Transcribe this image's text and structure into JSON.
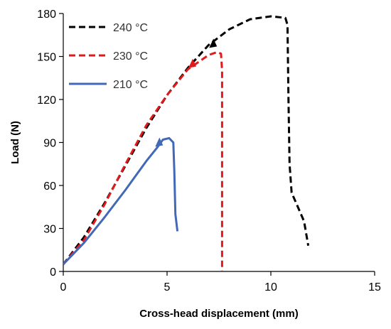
{
  "chart_data": {
    "type": "line",
    "title": "",
    "xlabel": "Cross-head displacement (mm)",
    "ylabel": "Load (N)",
    "xlim": [
      0,
      15
    ],
    "ylim": [
      0,
      180
    ],
    "xticks": [
      "0",
      "5",
      "10",
      "15"
    ],
    "yticks": [
      "0",
      "30",
      "60",
      "90",
      "120",
      "150",
      "180"
    ],
    "grid": false,
    "legend_position": "top-left",
    "series": [
      {
        "name": "240 °C",
        "color": "#000000",
        "dash": "dashed",
        "points": [
          [
            0,
            5
          ],
          [
            1,
            24
          ],
          [
            2,
            48
          ],
          [
            3,
            74
          ],
          [
            4,
            100
          ],
          [
            5,
            123
          ],
          [
            6,
            142
          ],
          [
            7,
            158
          ],
          [
            8,
            169
          ],
          [
            9,
            176
          ],
          [
            10,
            178
          ],
          [
            10.7,
            177
          ],
          [
            10.8,
            172
          ],
          [
            10.85,
            120
          ],
          [
            10.9,
            75
          ],
          [
            11,
            55
          ],
          [
            11.3,
            45
          ],
          [
            11.6,
            35
          ],
          [
            11.8,
            18
          ]
        ],
        "marker": [
          7.2,
          159
        ]
      },
      {
        "name": "230 °C",
        "color": "#e31a1c",
        "dash": "dashed",
        "points": [
          [
            0,
            5
          ],
          [
            1,
            22
          ],
          [
            2,
            47
          ],
          [
            3,
            75
          ],
          [
            4,
            102
          ],
          [
            5,
            123
          ],
          [
            6,
            141
          ],
          [
            7,
            151
          ],
          [
            7.4,
            153
          ],
          [
            7.6,
            152
          ],
          [
            7.65,
            140
          ],
          [
            7.65,
            0
          ]
        ],
        "marker": [
          6.2,
          145
        ]
      },
      {
        "name": "210 °C",
        "color": "#4169b8",
        "dash": "solid",
        "points": [
          [
            0,
            5
          ],
          [
            1,
            20
          ],
          [
            2,
            38
          ],
          [
            3,
            57
          ],
          [
            4,
            77
          ],
          [
            4.5,
            86
          ],
          [
            4.8,
            92
          ],
          [
            5.1,
            93
          ],
          [
            5.3,
            90
          ],
          [
            5.35,
            70
          ],
          [
            5.4,
            40
          ],
          [
            5.5,
            28
          ]
        ],
        "marker": [
          4.6,
          90
        ]
      }
    ]
  }
}
